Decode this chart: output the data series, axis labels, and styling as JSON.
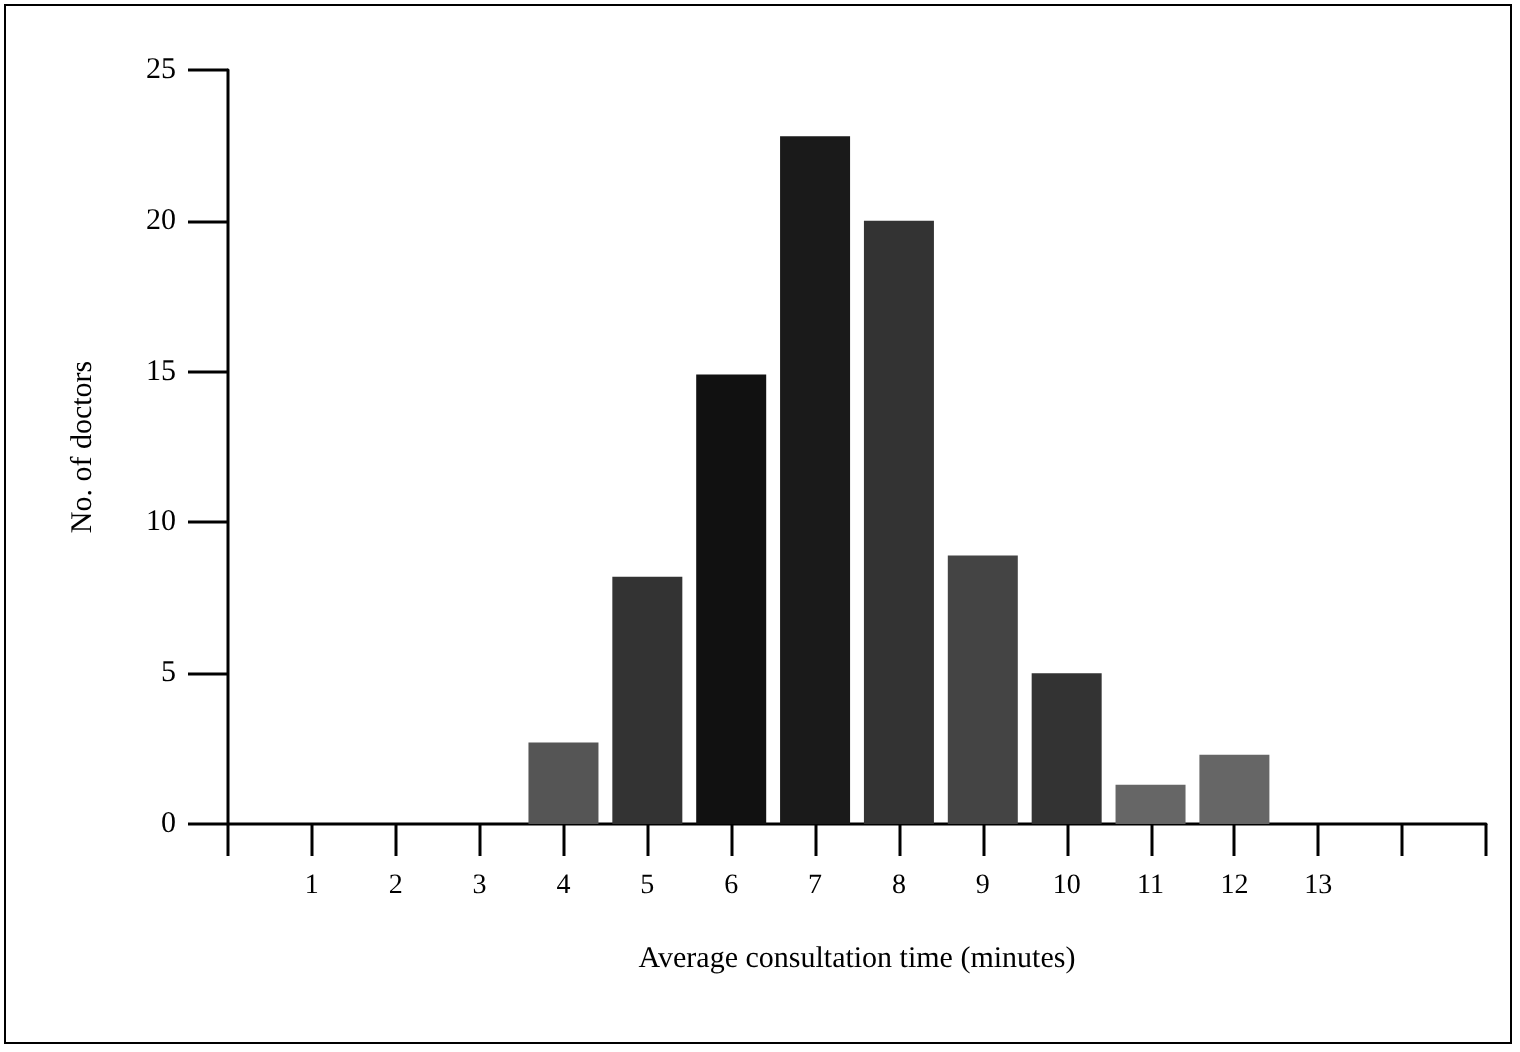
{
  "chart_data": {
    "type": "bar",
    "xlabel": "Average consultation time (minutes)",
    "ylabel": "No. of doctors",
    "x": [
      4,
      5,
      6,
      7,
      8,
      9,
      10,
      11,
      12
    ],
    "values": [
      2.7,
      8.2,
      14.9,
      22.8,
      20,
      8.9,
      5,
      1.3,
      2.3
    ],
    "colors": [
      "#555555",
      "#333333",
      "#111111",
      "#1a1a1a",
      "#333333",
      "#444444",
      "#333333",
      "#666666",
      "#666666"
    ],
    "xlim": [
      0,
      15
    ],
    "xticks": [
      {
        "value": 0,
        "label": null
      },
      1,
      2,
      3,
      4,
      5,
      6,
      7,
      8,
      9,
      10,
      11,
      12,
      13,
      {
        "value": 14,
        "label": null
      },
      {
        "value": 15,
        "label": null
      }
    ],
    "ylim": [
      0,
      25
    ],
    "yticks": [
      0,
      5,
      10,
      15,
      20,
      25
    ],
    "grid": false
  }
}
